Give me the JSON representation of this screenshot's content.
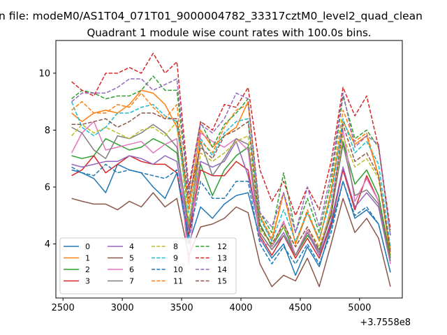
{
  "figure": {
    "suptitle": "n file: modeM0/AS1T04_071T01_9000004782_33317cztM0_level2_quad_clean",
    "offset_text": "+3.7558e8"
  },
  "colors": {
    "0": "#1f77b4",
    "1": "#ff7f0e",
    "2": "#2ca02c",
    "3": "#d62728",
    "4": "#9467bd",
    "5": "#8c564b",
    "6": "#e377c2",
    "7": "#7f7f7f",
    "8": "#bcbd22",
    "9": "#17becf",
    "10": "#1f77b4",
    "11": "#ff7f0e",
    "12": "#2ca02c",
    "13": "#d62728",
    "14": "#9467bd",
    "15": "#8c564b"
  },
  "chart_data": {
    "type": "line",
    "title": "Quadrant 1 module wise count rates with 100.0s bins.",
    "xlabel": "",
    "ylabel": "",
    "xlim": [
      2440,
      5360
    ],
    "ylim": [
      2.1,
      11.15
    ],
    "xticks": [
      2500,
      3000,
      3500,
      4000,
      4500,
      5000
    ],
    "xtick_labels": [
      "2500",
      "3000",
      "3500",
      "4000",
      "4500",
      "5000"
    ],
    "yticks": [
      4,
      6,
      8,
      10
    ],
    "ytick_labels": [
      "4",
      "6",
      "8",
      "10"
    ],
    "grid": false,
    "legend_position": "lower-left",
    "legend_columns": 4,
    "x": [
      2573,
      2660,
      2760,
      2860,
      2960,
      3060,
      3160,
      3260,
      3360,
      3460,
      3560,
      3660,
      3760,
      3860,
      3960,
      4060,
      4160,
      4260,
      4360,
      4460,
      4560,
      4660,
      4760,
      4860,
      4960,
      5060,
      5160,
      5260
    ],
    "series": [
      {
        "name": "0",
        "style": "solid",
        "values": [
          6.6,
          6.5,
          6.3,
          5.8,
          6.8,
          6.6,
          6.5,
          6.0,
          5.6,
          6.5,
          4.0,
          5.3,
          4.9,
          5.4,
          5.7,
          5.8,
          4.2,
          3.5,
          4.0,
          2.9,
          3.9,
          3.2,
          4.6,
          6.2,
          4.9,
          5.2,
          4.7,
          3.0
        ]
      },
      {
        "name": "1",
        "style": "solid",
        "values": [
          8.6,
          8.3,
          8.6,
          8.7,
          8.6,
          8.9,
          9.4,
          9.3,
          8.9,
          8.1,
          5.4,
          8.0,
          7.4,
          7.8,
          8.1,
          9.0,
          5.0,
          4.1,
          5.8,
          4.0,
          5.1,
          4.1,
          5.8,
          8.3,
          7.5,
          7.8,
          6.4,
          3.6
        ]
      },
      {
        "name": "2",
        "style": "solid",
        "values": [
          7.1,
          7.0,
          7.1,
          7.7,
          7.5,
          7.3,
          7.4,
          7.7,
          7.5,
          7.2,
          4.8,
          6.8,
          5.7,
          6.6,
          7.1,
          7.4,
          4.7,
          3.9,
          4.6,
          3.6,
          4.3,
          3.8,
          5.0,
          7.6,
          6.1,
          6.6,
          5.7,
          3.5
        ]
      },
      {
        "name": "3",
        "style": "solid",
        "values": [
          6.4,
          6.6,
          7.1,
          6.5,
          6.8,
          7.1,
          6.9,
          6.8,
          6.8,
          6.5,
          4.3,
          6.6,
          6.4,
          6.4,
          6.9,
          6.6,
          4.3,
          3.6,
          4.3,
          3.5,
          4.2,
          3.5,
          4.7,
          6.6,
          5.2,
          6.4,
          5.5,
          3.4
        ]
      },
      {
        "name": "4",
        "style": "solid",
        "values": [
          6.8,
          6.7,
          6.8,
          6.9,
          6.9,
          7.1,
          7.0,
          6.8,
          7.1,
          6.9,
          4.5,
          6.9,
          6.7,
          6.9,
          7.6,
          6.4,
          4.4,
          3.8,
          4.4,
          3.6,
          4.4,
          3.6,
          4.8,
          6.7,
          5.3,
          5.8,
          5.3,
          3.3
        ]
      },
      {
        "name": "5",
        "style": "solid",
        "values": [
          5.6,
          5.5,
          5.4,
          5.4,
          5.2,
          5.5,
          5.3,
          5.8,
          5.3,
          5.6,
          3.6,
          4.6,
          4.7,
          4.9,
          5.3,
          5.1,
          3.3,
          2.5,
          2.9,
          2.7,
          3.5,
          2.5,
          4.0,
          5.6,
          4.4,
          4.9,
          4.2,
          2.5
        ]
      },
      {
        "name": "6",
        "style": "solid",
        "values": [
          7.2,
          7.9,
          8.3,
          7.3,
          7.4,
          7.5,
          7.6,
          7.2,
          7.5,
          7.7,
          3.3,
          7.9,
          7.6,
          7.4,
          7.7,
          7.3,
          4.1,
          3.9,
          4.8,
          3.6,
          4.5,
          3.7,
          5.3,
          8.0,
          5.5,
          6.3,
          5.5,
          3.3
        ]
      },
      {
        "name": "7",
        "style": "solid",
        "values": [
          8.1,
          7.9,
          7.3,
          7.0,
          7.8,
          7.7,
          7.9,
          8.2,
          7.9,
          7.4,
          4.6,
          7.6,
          6.4,
          7.0,
          7.7,
          7.5,
          4.4,
          3.8,
          4.3,
          3.6,
          4.4,
          3.7,
          5.1,
          7.5,
          5.7,
          5.9,
          5.4,
          3.4
        ]
      },
      {
        "name": "8",
        "style": "dashed",
        "values": [
          7.8,
          8.2,
          7.9,
          8.1,
          7.9,
          7.7,
          8.0,
          8.1,
          7.8,
          8.3,
          4.7,
          7.2,
          6.9,
          7.2,
          7.6,
          7.8,
          4.5,
          4.0,
          4.6,
          3.9,
          4.6,
          3.9,
          5.2,
          7.8,
          6.7,
          7.0,
          6.3,
          3.7
        ]
      },
      {
        "name": "9",
        "style": "dashed",
        "values": [
          9.0,
          8.1,
          7.8,
          8.1,
          8.6,
          8.6,
          8.8,
          8.9,
          8.5,
          8.3,
          5.1,
          7.7,
          7.1,
          7.9,
          8.3,
          8.4,
          4.9,
          4.1,
          5.2,
          4.1,
          5.1,
          4.2,
          5.6,
          8.4,
          7.2,
          7.6,
          6.8,
          3.9
        ]
      },
      {
        "name": "10",
        "style": "dashed",
        "values": [
          6.7,
          6.5,
          6.4,
          6.8,
          6.5,
          6.6,
          6.5,
          6.4,
          6.3,
          6.6,
          4.2,
          6.2,
          5.6,
          5.6,
          6.2,
          6.2,
          4.0,
          3.3,
          3.9,
          3.3,
          4.0,
          3.3,
          4.4,
          6.2,
          5.0,
          5.3,
          4.7,
          3.0
        ]
      },
      {
        "name": "11",
        "style": "dashed",
        "values": [
          8.7,
          9.0,
          8.6,
          8.6,
          8.9,
          8.8,
          9.3,
          8.8,
          8.4,
          8.9,
          5.2,
          7.6,
          7.2,
          8.1,
          8.7,
          8.9,
          5.0,
          4.2,
          5.8,
          4.0,
          5.2,
          4.1,
          5.9,
          8.7,
          7.6,
          7.9,
          6.4,
          3.8
        ]
      },
      {
        "name": "12",
        "style": "dashed",
        "values": [
          9.1,
          9.4,
          9.3,
          9.1,
          9.2,
          9.2,
          9.4,
          9.9,
          9.4,
          9.4,
          5.8,
          8.3,
          7.4,
          8.2,
          8.6,
          9.1,
          5.1,
          4.4,
          6.5,
          4.4,
          5.6,
          4.4,
          6.2,
          9.2,
          7.7,
          8.0,
          7.4,
          4.3
        ]
      },
      {
        "name": "13",
        "style": "dashed",
        "values": [
          9.7,
          9.4,
          9.2,
          10.0,
          10.0,
          10.2,
          10.0,
          10.7,
          10.0,
          10.4,
          6.0,
          8.3,
          8.0,
          8.9,
          8.8,
          9.5,
          6.6,
          5.5,
          6.2,
          5.0,
          6.0,
          5.2,
          6.9,
          9.5,
          8.5,
          9.2,
          7.4,
          4.5
        ]
      },
      {
        "name": "14",
        "style": "dashed",
        "values": [
          9.0,
          9.3,
          9.3,
          9.3,
          9.5,
          9.8,
          9.8,
          9.4,
          9.6,
          9.8,
          5.8,
          8.2,
          7.9,
          8.4,
          9.3,
          9.1,
          5.1,
          4.6,
          5.8,
          4.4,
          6.0,
          4.6,
          6.5,
          9.3,
          7.4,
          7.8,
          7.5,
          4.3
        ]
      },
      {
        "name": "15",
        "style": "dashed",
        "values": [
          8.2,
          8.2,
          8.3,
          8.4,
          8.1,
          8.3,
          8.6,
          8.6,
          8.4,
          8.4,
          5.6,
          7.4,
          7.0,
          7.8,
          8.0,
          8.3,
          4.6,
          4.0,
          4.7,
          3.9,
          4.6,
          3.8,
          5.0,
          8.2,
          6.9,
          7.2,
          6.4,
          3.7
        ]
      }
    ]
  }
}
